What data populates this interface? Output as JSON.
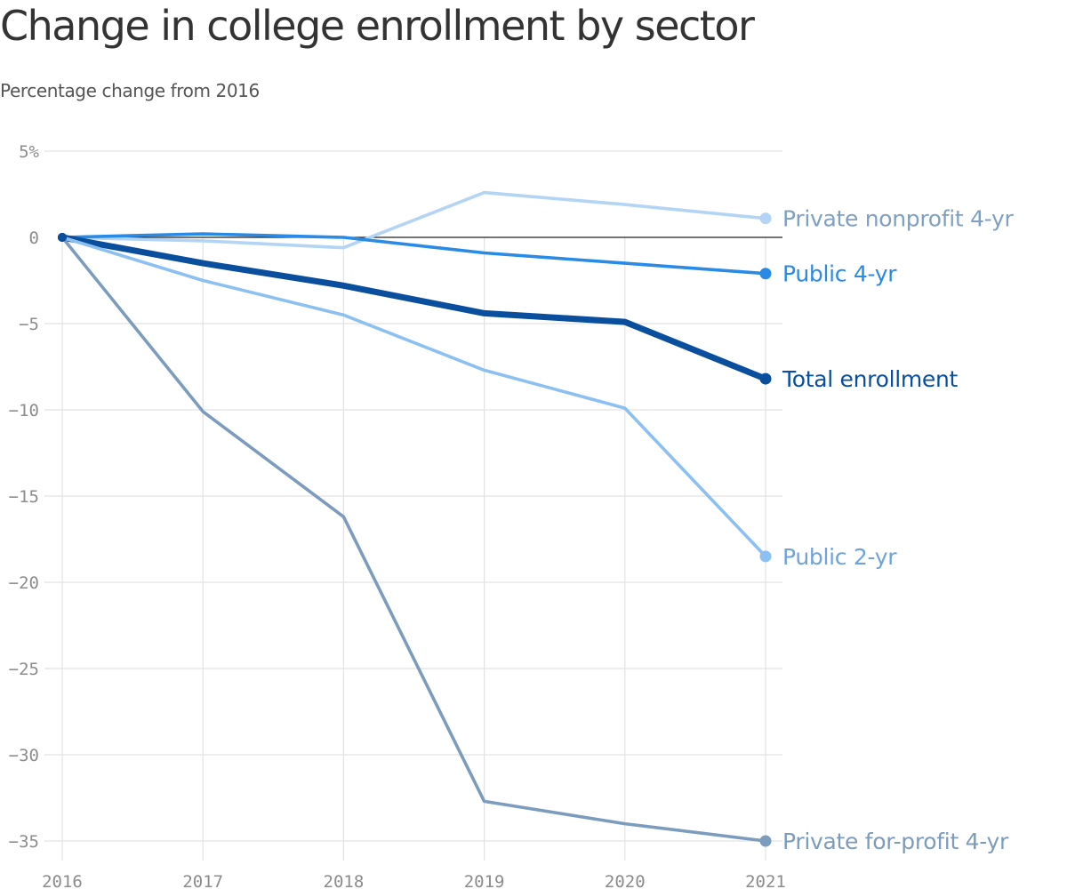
{
  "chart_data": {
    "type": "line",
    "title": "Change in college enrollment by sector",
    "subtitle": "Percentage change from 2016",
    "xlabel": "",
    "ylabel": "",
    "x": [
      2016,
      2017,
      2018,
      2019,
      2020,
      2021
    ],
    "x_tick_labels": [
      "2016",
      "2017",
      "2018",
      "2019",
      "2020",
      "2021"
    ],
    "ylim": [
      -35,
      5
    ],
    "y_ticks": [
      5,
      0,
      -5,
      -10,
      -15,
      -20,
      -25,
      -30,
      -35
    ],
    "y_tick_labels": [
      "5%",
      "0",
      "−5",
      "−10",
      "−15",
      "−20",
      "−25",
      "−30",
      "−35"
    ],
    "grid": true,
    "zero_line": true,
    "series": [
      {
        "name": "Private nonprofit 4-yr",
        "label": "Private nonprofit 4-yr",
        "values": [
          0,
          -0.2,
          -0.6,
          2.6,
          1.9,
          1.1
        ],
        "color": "#b3d4f5",
        "label_color": "#7ea0c3",
        "emphasis": "normal"
      },
      {
        "name": "Public 4-yr",
        "label": "Public 4-yr",
        "values": [
          0,
          0.2,
          0.0,
          -0.9,
          -1.5,
          -2.1
        ],
        "color": "#2a8be6",
        "label_color": "#2a8be6",
        "emphasis": "normal"
      },
      {
        "name": "Total enrollment",
        "label": "Total enrollment",
        "values": [
          0,
          -1.5,
          -2.8,
          -4.4,
          -4.9,
          -8.2
        ],
        "color": "#0a4f9e",
        "label_color": "#0a4f9e",
        "emphasis": "bold"
      },
      {
        "name": "Public 2-yr",
        "label": "Public 2-yr",
        "values": [
          0,
          -2.5,
          -4.5,
          -7.7,
          -9.9,
          -18.5
        ],
        "color": "#8cc0f2",
        "label_color": "#6fa3d9",
        "emphasis": "normal"
      },
      {
        "name": "Private for-profit 4-yr",
        "label": "Private for-profit 4-yr",
        "values": [
          0,
          -10.1,
          -16.2,
          -32.7,
          -34.0,
          -35.0
        ],
        "color": "#7b9cbc",
        "label_color": "#7b9cbc",
        "emphasis": "normal"
      }
    ]
  }
}
